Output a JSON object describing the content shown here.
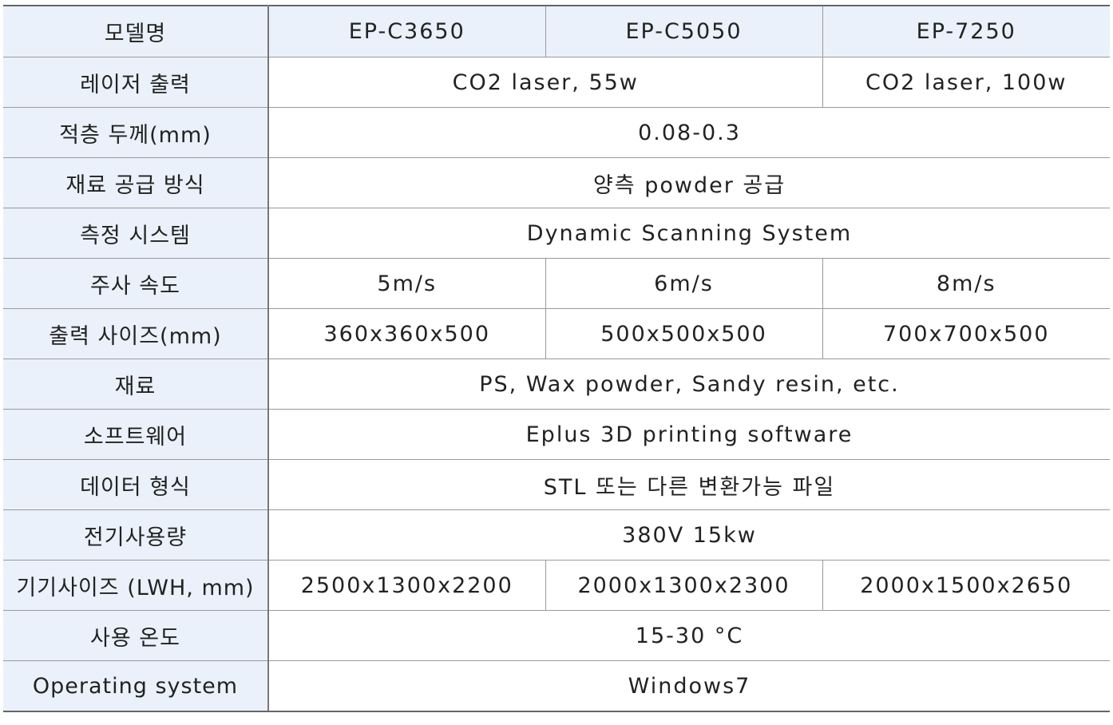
{
  "table": {
    "header": [
      "모델명",
      "EP-C3650",
      "EP-C5050",
      "EP-7250"
    ],
    "rows": [
      [
        "레이저 출력",
        "CO2 laser, 55w",
        "CO2 laser, 100w"
      ],
      [
        "적층 두께(mm)",
        "0.08-0.3"
      ],
      [
        "재료 공급 방식",
        "양측 powder 공급"
      ],
      [
        "측정 시스템",
        "Dynamic Scanning System"
      ],
      [
        "주사 속도",
        "5m/s",
        "6m/s",
        "8m/s"
      ],
      [
        "출력 사이즈(mm)",
        "360x360x500",
        "500x500x500",
        "700x700x500"
      ],
      [
        "재료",
        "PS, Wax powder, Sandy resin, etc."
      ],
      [
        "소프트웨어",
        "Eplus 3D printing software"
      ],
      [
        "데이터 형식",
        "STL 또는 다른 변환가능 파일"
      ],
      [
        "전기사용량",
        "380V 15kw"
      ],
      [
        "기기사이즈 (LWH, mm)",
        "2500x1300x2200",
        "2000x1300x2300",
        "2000x1500x2650"
      ],
      [
        "사용 온도",
        "15-30 °C"
      ],
      [
        "Operating system",
        "Windows7"
      ]
    ]
  }
}
